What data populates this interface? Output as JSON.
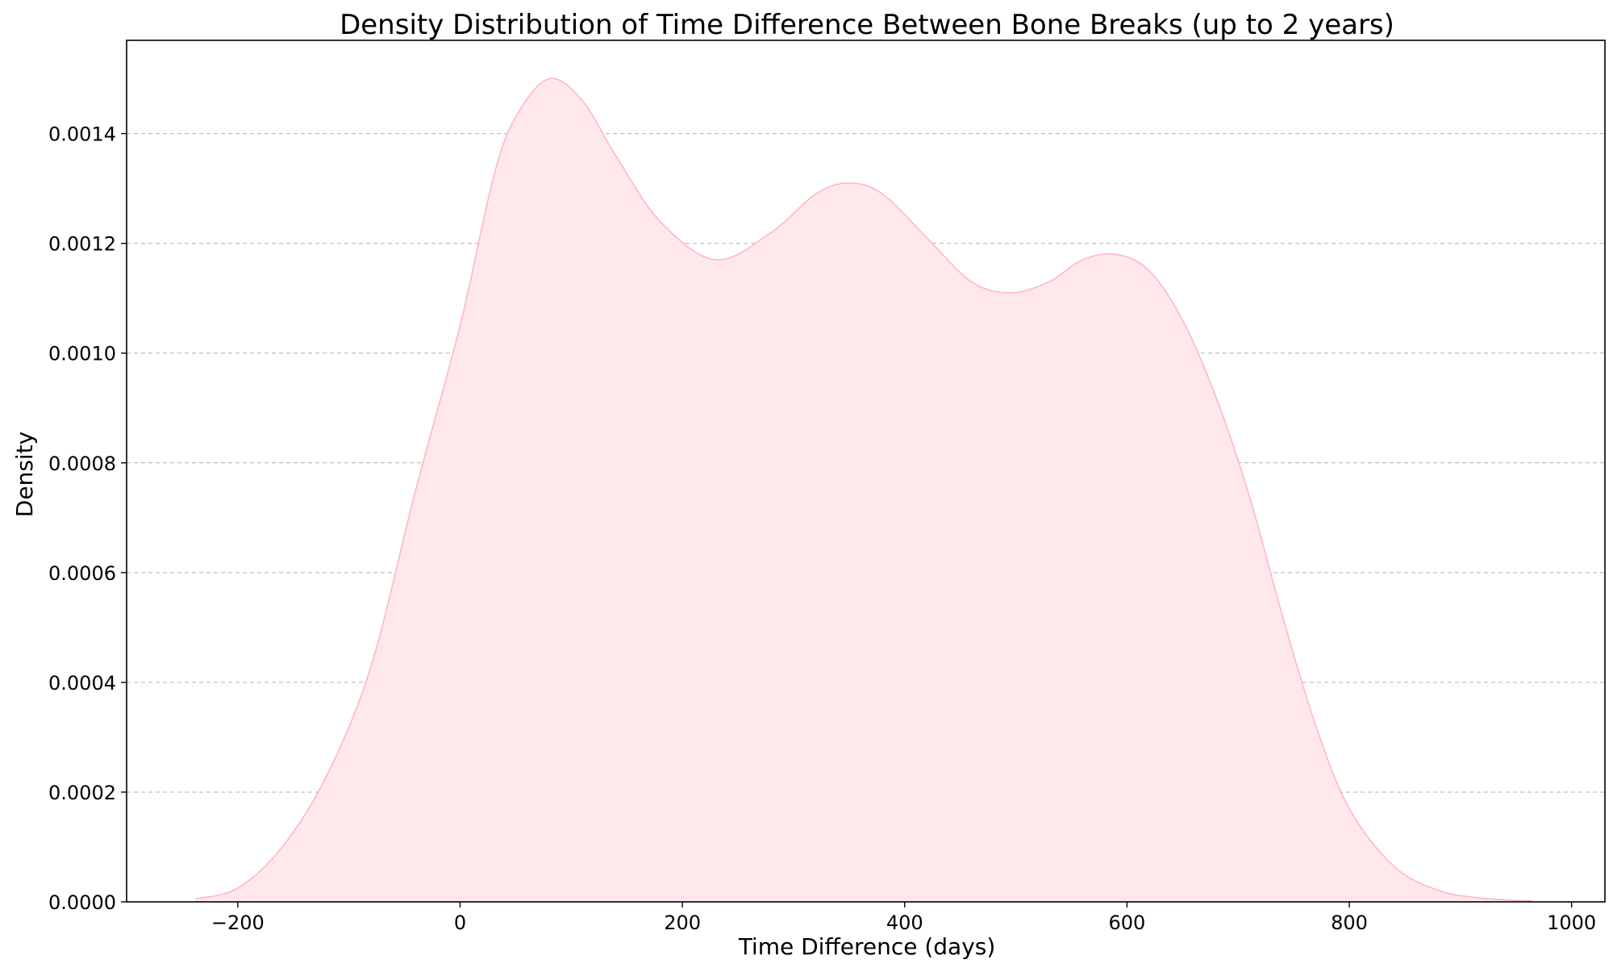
{
  "chart_data": {
    "type": "area",
    "title": "Density Distribution of Time Difference Between Bone Breaks (up to 2 years)",
    "xlabel": "Time Difference (days)",
    "ylabel": "Density",
    "xlim": [
      -300,
      1030
    ],
    "ylim": [
      0,
      0.00157
    ],
    "xticks": [
      -200,
      0,
      200,
      400,
      600,
      800,
      1000
    ],
    "xtick_labels": [
      "−200",
      "0",
      "200",
      "400",
      "600",
      "800",
      "1000"
    ],
    "yticks": [
      0,
      0.0002,
      0.0004,
      0.0006,
      0.0008,
      0.001,
      0.0012,
      0.0014
    ],
    "ytick_labels": [
      "0.0000",
      "0.0002",
      "0.0004",
      "0.0006",
      "0.0008",
      "0.0010",
      "0.0012",
      "0.0014"
    ],
    "grid": "horizontal-dashed",
    "fill_color": "#ffe8ec",
    "line_color": "#ffb6c1",
    "series": [
      {
        "x": [
          -238,
          -200,
          -160,
          -120,
          -80,
          -40,
          0,
          30,
          50,
          80,
          110,
          140,
          180,
          230,
          280,
          320,
          350,
          380,
          420,
          460,
          495,
          530,
          560,
          590,
          620,
          650,
          680,
          710,
          740,
          770,
          800,
          840,
          880,
          920,
          965
        ],
        "y": [
          5.5e-06,
          2.5e-05,
          0.0001,
          0.00023,
          0.00043,
          0.00075,
          0.00105,
          0.00132,
          0.00143,
          0.0015,
          0.00146,
          0.00136,
          0.00124,
          0.00117,
          0.00122,
          0.00129,
          0.00131,
          0.00129,
          0.00121,
          0.00113,
          0.00111,
          0.00113,
          0.00117,
          0.00118,
          0.00115,
          0.00106,
          0.00092,
          0.00074,
          0.00052,
          0.00032,
          0.00017,
          6.5e-05,
          2.1e-05,
          6.5e-06,
          1.5e-06
        ]
      }
    ]
  }
}
